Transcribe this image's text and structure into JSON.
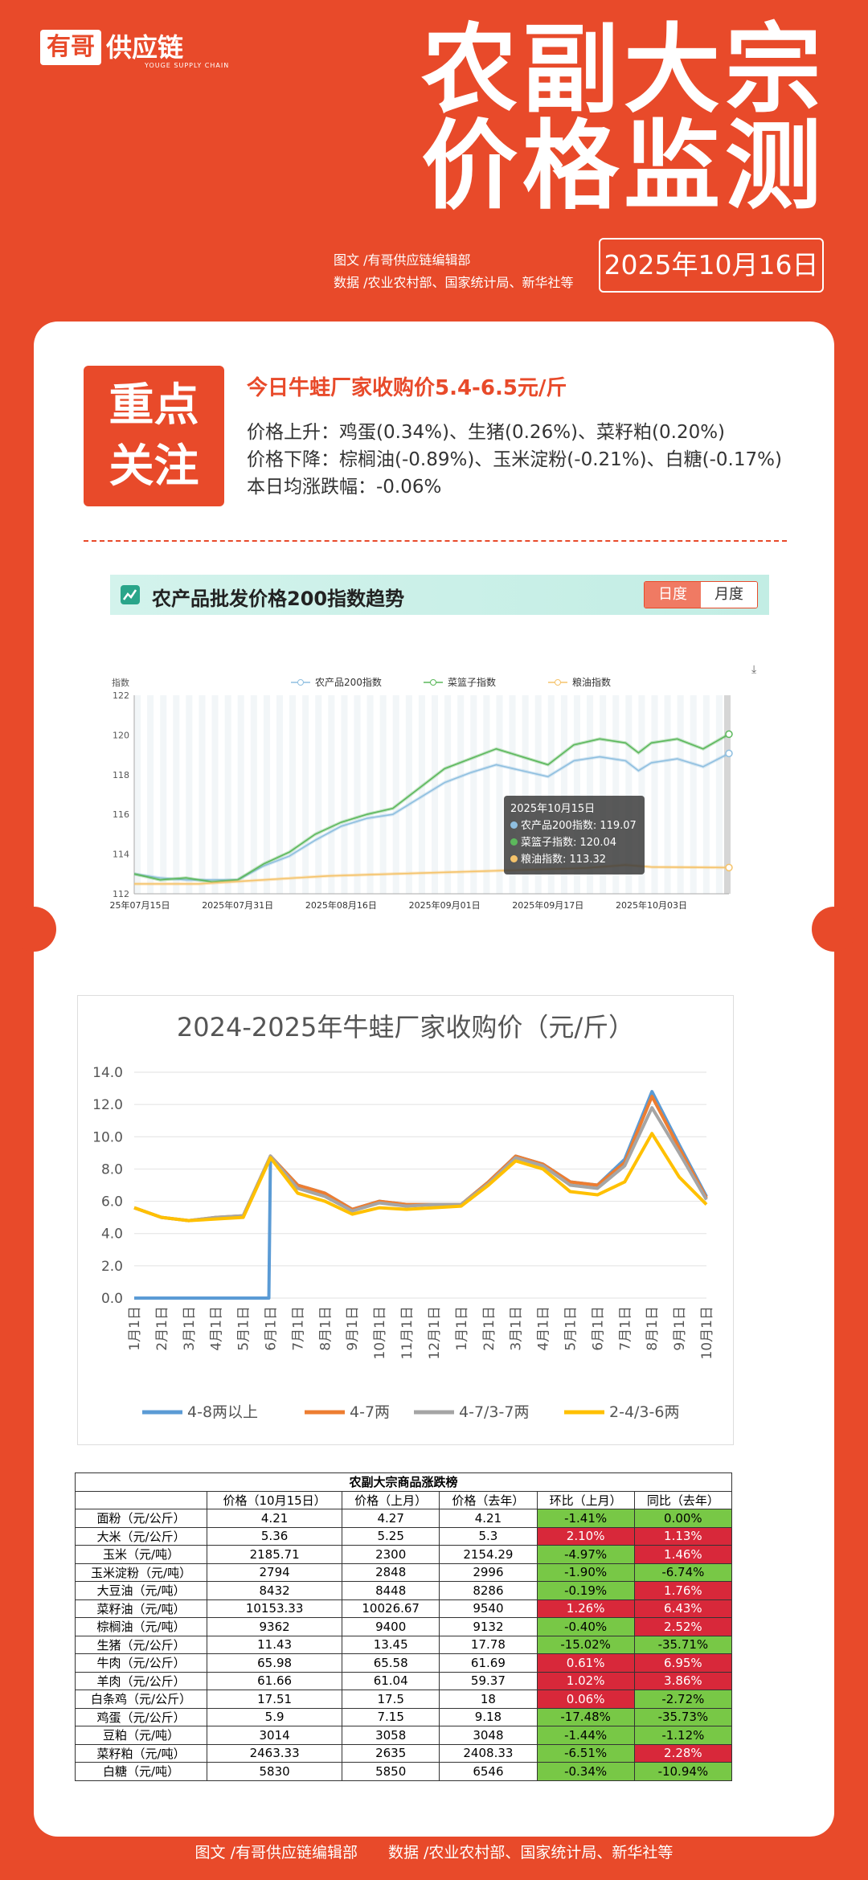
{
  "brand": {
    "box": "有哥",
    "name": "供应链",
    "sub": "YOUGE SUPPLY CHAIN"
  },
  "title": {
    "line1": "农副大宗",
    "line2": "价格监测"
  },
  "credits": {
    "line1": "图文 /有哥供应链编辑部",
    "line2": "数据 /农业农村部、国家统计局、新华社等"
  },
  "date": "2025年10月16日",
  "focus": {
    "label_line1": "重点",
    "label_line2": "关注",
    "headline": "今日牛蛙厂家收购价5.4-6.5元/斤",
    "rise": "价格上升：鸡蛋(0.34%)、生猪(0.26%)、菜籽粕(0.20%)",
    "fall": "价格下降：棕榈油(-0.89%)、玉米淀粉(-0.21%)、白糖(-0.17%)",
    "avg": "本日均涨跌幅：-0.06%"
  },
  "index_chart": {
    "title": "农产品批发价格200指数趋势",
    "tab_day": "日度",
    "tab_month": "月度",
    "ylabel": "指数",
    "legend": [
      "农产品200指数",
      "菜篮子指数",
      "粮油指数"
    ],
    "colors": {
      "agri200": "#8fbfe0",
      "basket": "#5cb85c",
      "grain": "#f5c36b"
    },
    "tooltip": {
      "date": "2025年10月15日",
      "line1": "农产品200指数: 119.07",
      "line2": "菜篮子指数: 120.04",
      "line3": "粮油指数: 113.32"
    },
    "chart_data": {
      "type": "line",
      "ylim": [
        112,
        122
      ],
      "yticks": [
        "122",
        "120",
        "118",
        "116",
        "114",
        "112"
      ],
      "xticks": [
        "2025年07月15日",
        "2025年07月31日",
        "2025年08月16日",
        "2025年09月01日",
        "2025年09月17日",
        "2025年10月03日"
      ],
      "x_days": [
        0,
        16,
        32,
        48,
        64,
        80
      ],
      "x_range_days": [
        0,
        92
      ],
      "series": [
        {
          "name": "农产品200指数",
          "points": [
            [
              0,
              113.0
            ],
            [
              4,
              112.8
            ],
            [
              8,
              112.7
            ],
            [
              12,
              112.7
            ],
            [
              16,
              112.7
            ],
            [
              20,
              113.4
            ],
            [
              24,
              113.9
            ],
            [
              28,
              114.7
            ],
            [
              32,
              115.4
            ],
            [
              36,
              115.8
            ],
            [
              40,
              116.0
            ],
            [
              44,
              116.8
            ],
            [
              48,
              117.6
            ],
            [
              52,
              118.1
            ],
            [
              56,
              118.5
            ],
            [
              60,
              118.2
            ],
            [
              64,
              117.9
            ],
            [
              68,
              118.7
            ],
            [
              72,
              118.9
            ],
            [
              76,
              118.7
            ],
            [
              78,
              118.2
            ],
            [
              80,
              118.6
            ],
            [
              84,
              118.8
            ],
            [
              88,
              118.4
            ],
            [
              92,
              119.07
            ]
          ]
        },
        {
          "name": "菜篮子指数",
          "points": [
            [
              0,
              113.0
            ],
            [
              4,
              112.7
            ],
            [
              8,
              112.8
            ],
            [
              12,
              112.6
            ],
            [
              16,
              112.7
            ],
            [
              20,
              113.5
            ],
            [
              24,
              114.1
            ],
            [
              28,
              115.0
            ],
            [
              32,
              115.6
            ],
            [
              36,
              116.0
            ],
            [
              40,
              116.3
            ],
            [
              44,
              117.3
            ],
            [
              48,
              118.3
            ],
            [
              52,
              118.8
            ],
            [
              56,
              119.3
            ],
            [
              60,
              118.9
            ],
            [
              64,
              118.5
            ],
            [
              68,
              119.5
            ],
            [
              72,
              119.8
            ],
            [
              76,
              119.6
            ],
            [
              78,
              119.1
            ],
            [
              80,
              119.6
            ],
            [
              84,
              119.8
            ],
            [
              88,
              119.3
            ],
            [
              92,
              120.04
            ]
          ]
        },
        {
          "name": "粮油指数",
          "points": [
            [
              0,
              112.5
            ],
            [
              10,
              112.5
            ],
            [
              20,
              112.7
            ],
            [
              30,
              112.9
            ],
            [
              40,
              113.0
            ],
            [
              50,
              113.1
            ],
            [
              60,
              113.2
            ],
            [
              70,
              113.3
            ],
            [
              76,
              113.45
            ],
            [
              80,
              113.35
            ],
            [
              92,
              113.32
            ]
          ]
        }
      ]
    }
  },
  "frog_chart": {
    "title": "2024-2025年牛蛙厂家收购价（元/斤）",
    "chart_data": {
      "type": "line",
      "title": "2024-2025年牛蛙厂家收购价（元/斤）",
      "ylim": [
        0,
        14
      ],
      "yticks": [
        "14.0",
        "12.0",
        "10.0",
        "8.0",
        "6.0",
        "4.0",
        "2.0",
        "0.0"
      ],
      "categories": [
        "1月1日",
        "2月1日",
        "3月1日",
        "4月1日",
        "5月1日",
        "6月1日",
        "7月1日",
        "8月1日",
        "9月1日",
        "10月1日",
        "11月1日",
        "12月1日",
        "1月1日",
        "2月1日",
        "3月1日",
        "4月1日",
        "5月1日",
        "6月1日",
        "7月1日",
        "8月1日",
        "9月1日",
        "10月1日"
      ],
      "series": [
        {
          "name": "4-8两以上",
          "color": "#5b9bd5",
          "values": [
            0,
            0,
            0,
            0,
            0,
            8.8,
            7.0,
            6.5,
            5.5,
            6.0,
            5.8,
            5.8,
            5.8,
            7.2,
            8.8,
            8.3,
            7.2,
            7.0,
            8.6,
            12.8,
            9.5,
            6.3
          ]
        },
        {
          "name": "4-7两",
          "color": "#ed7d31",
          "values": [
            5.6,
            5.0,
            4.8,
            5.0,
            5.1,
            8.8,
            7.0,
            6.5,
            5.5,
            6.0,
            5.8,
            5.8,
            5.8,
            7.2,
            8.8,
            8.3,
            7.2,
            7.0,
            8.4,
            12.5,
            9.3,
            6.2
          ]
        },
        {
          "name": "4-7/3-7两",
          "color": "#a5a5a5",
          "values": [
            5.6,
            5.0,
            4.8,
            5.0,
            5.1,
            8.8,
            6.8,
            6.3,
            5.4,
            5.9,
            5.7,
            5.8,
            5.8,
            7.1,
            8.7,
            8.2,
            7.0,
            6.8,
            8.2,
            11.8,
            9.0,
            6.1
          ]
        },
        {
          "name": "2-4/3-6两",
          "color": "#ffc000",
          "values": [
            5.6,
            5.0,
            4.8,
            4.9,
            5.0,
            8.7,
            6.5,
            6.0,
            5.2,
            5.6,
            5.5,
            5.6,
            5.7,
            7.0,
            8.5,
            8.0,
            6.6,
            6.4,
            7.2,
            10.2,
            7.5,
            5.8
          ]
        }
      ]
    }
  },
  "table": {
    "caption": "农副大宗商品涨跌榜",
    "headers": [
      "",
      "价格（10月15日）",
      "价格（上月）",
      "价格（去年）",
      "环比（上月）",
      "同比（去年）"
    ],
    "rows": [
      {
        "name": "面粉（元/公斤）",
        "today": "4.21",
        "month": "4.27",
        "year": "4.21",
        "mom": "-1.41%",
        "yoy": "0.00%",
        "mom_up": false,
        "yoy_up": false
      },
      {
        "name": "大米（元/公斤）",
        "today": "5.36",
        "month": "5.25",
        "year": "5.3",
        "mom": "2.10%",
        "yoy": "1.13%",
        "mom_up": true,
        "yoy_up": true
      },
      {
        "name": "玉米（元/吨）",
        "today": "2185.71",
        "month": "2300",
        "year": "2154.29",
        "mom": "-4.97%",
        "yoy": "1.46%",
        "mom_up": false,
        "yoy_up": true
      },
      {
        "name": "玉米淀粉（元/吨）",
        "today": "2794",
        "month": "2848",
        "year": "2996",
        "mom": "-1.90%",
        "yoy": "-6.74%",
        "mom_up": false,
        "yoy_up": false
      },
      {
        "name": "大豆油（元/吨）",
        "today": "8432",
        "month": "8448",
        "year": "8286",
        "mom": "-0.19%",
        "yoy": "1.76%",
        "mom_up": false,
        "yoy_up": true
      },
      {
        "name": "菜籽油（元/吨）",
        "today": "10153.33",
        "month": "10026.67",
        "year": "9540",
        "mom": "1.26%",
        "yoy": "6.43%",
        "mom_up": true,
        "yoy_up": true
      },
      {
        "name": "棕榈油（元/吨）",
        "today": "9362",
        "month": "9400",
        "year": "9132",
        "mom": "-0.40%",
        "yoy": "2.52%",
        "mom_up": false,
        "yoy_up": true
      },
      {
        "name": "生猪（元/公斤）",
        "today": "11.43",
        "month": "13.45",
        "year": "17.78",
        "mom": "-15.02%",
        "yoy": "-35.71%",
        "mom_up": false,
        "yoy_up": false
      },
      {
        "name": "牛肉（元/公斤）",
        "today": "65.98",
        "month": "65.58",
        "year": "61.69",
        "mom": "0.61%",
        "yoy": "6.95%",
        "mom_up": true,
        "yoy_up": true
      },
      {
        "name": "羊肉（元/公斤）",
        "today": "61.66",
        "month": "61.04",
        "year": "59.37",
        "mom": "1.02%",
        "yoy": "3.86%",
        "mom_up": true,
        "yoy_up": true
      },
      {
        "name": "白条鸡（元/公斤）",
        "today": "17.51",
        "month": "17.5",
        "year": "18",
        "mom": "0.06%",
        "yoy": "-2.72%",
        "mom_up": true,
        "yoy_up": false
      },
      {
        "name": "鸡蛋（元/公斤）",
        "today": "5.9",
        "month": "7.15",
        "year": "9.18",
        "mom": "-17.48%",
        "yoy": "-35.73%",
        "mom_up": false,
        "yoy_up": false
      },
      {
        "name": "豆粕（元/吨）",
        "today": "3014",
        "month": "3058",
        "year": "3048",
        "mom": "-1.44%",
        "yoy": "-1.12%",
        "mom_up": false,
        "yoy_up": false
      },
      {
        "name": "菜籽粕（元/吨）",
        "today": "2463.33",
        "month": "2635",
        "year": "2408.33",
        "mom": "-6.51%",
        "yoy": "2.28%",
        "mom_up": false,
        "yoy_up": true
      },
      {
        "name": "白糖（元/吨）",
        "today": "5830",
        "month": "5850",
        "year": "6546",
        "mom": "-0.34%",
        "yoy": "-10.94%",
        "mom_up": false,
        "yoy_up": false
      }
    ]
  },
  "footer": "图文 /有哥供应链编辑部　　数据 /农业农村部、国家统计局、新华社等"
}
